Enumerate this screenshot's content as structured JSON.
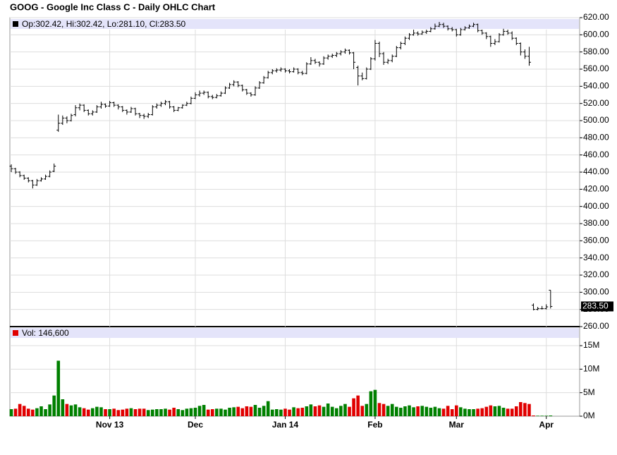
{
  "chart_data": {
    "type": "ohlc",
    "title": "GOOG - Google Inc Class C - Daily OHLC Chart",
    "price_info": "Op:302.42, Hi:302.42, Lo:281.10, Cl:283.50",
    "volume_info": "Vol: 146,600",
    "last_price": {
      "value": 283.5,
      "label": "283.50"
    },
    "grid": true,
    "bar_color": "#000000",
    "up_color": "#008000",
    "down_color": "#e00000",
    "ylim": [
      260,
      620
    ],
    "yticks": [
      {
        "value": 260,
        "label": "260.00"
      },
      {
        "value": 280,
        "label": "280.00"
      },
      {
        "value": 300,
        "label": "300.00"
      },
      {
        "value": 320,
        "label": "320.00"
      },
      {
        "value": 340,
        "label": "340.00"
      },
      {
        "value": 360,
        "label": "360.00"
      },
      {
        "value": 380,
        "label": "380.00"
      },
      {
        "value": 400,
        "label": "400.00"
      },
      {
        "value": 420,
        "label": "420.00"
      },
      {
        "value": 440,
        "label": "440.00"
      },
      {
        "value": 460,
        "label": "460.00"
      },
      {
        "value": 480,
        "label": "480.00"
      },
      {
        "value": 500,
        "label": "500.00"
      },
      {
        "value": 520,
        "label": "520.00"
      },
      {
        "value": 540,
        "label": "540.00"
      },
      {
        "value": 560,
        "label": "560.00"
      },
      {
        "value": 580,
        "label": "580.00"
      },
      {
        "value": 600,
        "label": "600.00"
      },
      {
        "value": 620,
        "label": "620.00"
      }
    ],
    "vlim": [
      0,
      16.8
    ],
    "vticks": [
      {
        "value": 0,
        "label": "0M"
      },
      {
        "value": 5,
        "label": "5M"
      },
      {
        "value": 10,
        "label": "10M"
      },
      {
        "value": 15,
        "label": "15M"
      }
    ],
    "xticks": [
      {
        "value": 23,
        "label": "Nov 13"
      },
      {
        "value": 43,
        "label": "Dec"
      },
      {
        "value": 64,
        "label": "Jan 14"
      },
      {
        "value": 85,
        "label": "Feb"
      },
      {
        "value": 104,
        "label": "Mar"
      },
      {
        "value": 125,
        "label": "Apr"
      }
    ],
    "ohlc": [
      [
        447,
        449,
        440,
        444
      ],
      [
        444,
        445,
        438,
        440
      ],
      [
        440,
        441,
        434,
        436
      ],
      [
        436,
        437,
        431,
        433
      ],
      [
        433,
        434,
        428,
        430
      ],
      [
        430,
        431,
        421,
        425
      ],
      [
        425,
        432,
        424,
        430
      ],
      [
        430,
        434,
        429,
        432
      ],
      [
        432,
        437,
        431,
        435
      ],
      [
        435,
        442,
        434,
        440
      ],
      [
        441,
        450,
        440,
        447
      ],
      [
        489,
        507,
        487,
        497
      ],
      [
        497,
        506,
        495,
        503
      ],
      [
        503,
        505,
        497,
        500
      ],
      [
        500,
        508,
        499,
        506
      ],
      [
        507,
        518,
        505,
        515
      ],
      [
        515,
        520,
        512,
        518
      ],
      [
        518,
        519,
        510,
        512
      ],
      [
        512,
        513,
        506,
        508
      ],
      [
        508,
        512,
        506,
        510
      ],
      [
        510,
        518,
        509,
        516
      ],
      [
        516,
        522,
        514,
        519
      ],
      [
        519,
        520,
        515,
        517
      ],
      [
        517,
        523,
        516,
        521
      ],
      [
        521,
        522,
        516,
        518
      ],
      [
        518,
        519,
        513,
        516
      ],
      [
        516,
        517,
        510,
        512
      ],
      [
        512,
        513,
        507,
        510
      ],
      [
        510,
        516,
        509,
        514
      ],
      [
        514,
        515,
        506,
        508
      ],
      [
        508,
        509,
        503,
        506
      ],
      [
        506,
        508,
        502,
        505
      ],
      [
        505,
        509,
        503,
        507
      ],
      [
        507,
        518,
        506,
        516
      ],
      [
        516,
        520,
        514,
        518
      ],
      [
        518,
        522,
        516,
        520
      ],
      [
        520,
        524,
        518,
        522
      ],
      [
        522,
        523,
        514,
        516
      ],
      [
        516,
        517,
        510,
        512
      ],
      [
        512,
        516,
        511,
        515
      ],
      [
        515,
        519,
        514,
        518
      ],
      [
        518,
        522,
        517,
        520
      ],
      [
        520,
        528,
        519,
        526
      ],
      [
        526,
        533,
        525,
        530
      ],
      [
        530,
        535,
        528,
        532
      ],
      [
        532,
        535,
        530,
        533
      ],
      [
        533,
        534,
        526,
        528
      ],
      [
        528,
        530,
        525,
        527
      ],
      [
        527,
        531,
        526,
        529
      ],
      [
        529,
        534,
        528,
        532
      ],
      [
        532,
        540,
        531,
        538
      ],
      [
        538,
        544,
        537,
        542
      ],
      [
        542,
        547,
        540,
        545
      ],
      [
        545,
        546,
        539,
        541
      ],
      [
        541,
        542,
        534,
        536
      ],
      [
        536,
        537,
        530,
        532
      ],
      [
        532,
        533,
        528,
        530
      ],
      [
        530,
        540,
        529,
        538
      ],
      [
        538,
        546,
        537,
        544
      ],
      [
        544,
        552,
        543,
        550
      ],
      [
        550,
        558,
        549,
        556
      ],
      [
        556,
        560,
        554,
        558
      ],
      [
        558,
        561,
        556,
        559
      ],
      [
        559,
        562,
        557,
        560
      ],
      [
        560,
        561,
        556,
        558
      ],
      [
        558,
        560,
        555,
        557
      ],
      [
        557,
        562,
        556,
        560
      ],
      [
        560,
        561,
        554,
        556
      ],
      [
        556,
        558,
        553,
        555
      ],
      [
        555,
        568,
        554,
        566
      ],
      [
        566,
        574,
        565,
        570
      ],
      [
        570,
        572,
        566,
        568
      ],
      [
        568,
        569,
        563,
        566
      ],
      [
        566,
        575,
        565,
        573
      ],
      [
        573,
        577,
        571,
        575
      ],
      [
        575,
        578,
        573,
        576
      ],
      [
        576,
        580,
        574,
        578
      ],
      [
        578,
        582,
        576,
        580
      ],
      [
        580,
        584,
        578,
        582
      ],
      [
        582,
        583,
        577,
        579
      ],
      [
        579,
        580,
        560,
        568
      ],
      [
        562,
        564,
        541,
        552
      ],
      [
        552,
        556,
        547,
        549
      ],
      [
        549,
        562,
        548,
        560
      ],
      [
        560,
        574,
        559,
        572
      ],
      [
        572,
        594,
        570,
        590
      ],
      [
        590,
        592,
        574,
        578
      ],
      [
        578,
        580,
        565,
        568
      ],
      [
        568,
        572,
        566,
        570
      ],
      [
        570,
        577,
        568,
        575
      ],
      [
        575,
        587,
        574,
        585
      ],
      [
        585,
        592,
        583,
        590
      ],
      [
        590,
        598,
        588,
        596
      ],
      [
        596,
        602,
        594,
        600
      ],
      [
        600,
        606,
        599,
        602
      ],
      [
        602,
        604,
        599,
        601
      ],
      [
        601,
        605,
        600,
        603
      ],
      [
        603,
        606,
        601,
        604
      ],
      [
        604,
        609,
        603,
        607
      ],
      [
        607,
        613,
        606,
        610
      ],
      [
        610,
        615,
        609,
        612
      ],
      [
        612,
        614,
        608,
        610
      ],
      [
        610,
        611,
        605,
        607
      ],
      [
        607,
        609,
        604,
        606
      ],
      [
        606,
        607,
        598,
        600
      ],
      [
        600,
        608,
        599,
        606
      ],
      [
        606,
        610,
        605,
        608
      ],
      [
        608,
        612,
        607,
        610
      ],
      [
        610,
        614,
        609,
        612
      ],
      [
        612,
        613,
        603,
        605
      ],
      [
        605,
        606,
        600,
        602
      ],
      [
        602,
        603,
        595,
        598
      ],
      [
        598,
        599,
        586,
        590
      ],
      [
        590,
        595,
        588,
        592
      ],
      [
        592,
        602,
        591,
        600
      ],
      [
        600,
        607,
        599,
        604
      ],
      [
        604,
        606,
        600,
        602
      ],
      [
        602,
        604,
        594,
        596
      ],
      [
        596,
        597,
        588,
        590
      ],
      [
        590,
        591,
        576,
        580
      ],
      [
        580,
        583,
        572,
        575
      ],
      [
        575,
        586,
        564,
        568
      ],
      [
        285,
        287,
        279,
        280
      ],
      [
        280,
        283,
        279,
        281
      ],
      [
        281,
        284,
        280,
        281
      ],
      [
        281,
        286,
        280,
        283
      ],
      [
        302.42,
        302.42,
        281.1,
        283.5
      ]
    ],
    "volume": [
      1.5,
      1.6,
      2.6,
      2.2,
      1.6,
      1.4,
      1.7,
      2.1,
      1.5,
      2.5,
      4.4,
      11.8,
      3.6,
      2.6,
      2.3,
      2.5,
      1.9,
      1.7,
      1.4,
      1.7,
      2.0,
      1.9,
      1.5,
      1.5,
      1.6,
      1.3,
      1.4,
      1.6,
      1.7,
      1.5,
      1.6,
      1.6,
      1.3,
      1.4,
      1.5,
      1.5,
      1.6,
      1.4,
      1.8,
      1.5,
      1.3,
      1.6,
      1.7,
      1.8,
      2.2,
      2.4,
      1.4,
      1.5,
      1.6,
      1.6,
      1.4,
      1.8,
      1.9,
      2.0,
      1.7,
      2.1,
      2.0,
      2.4,
      1.8,
      2.2,
      3.2,
      1.4,
      1.5,
      1.4,
      1.6,
      1.4,
      1.9,
      1.7,
      1.8,
      2.1,
      2.5,
      2.1,
      2.3,
      2.0,
      2.7,
      2.0,
      1.7,
      2.2,
      2.6,
      2.0,
      3.8,
      4.4,
      2.2,
      2.6,
      5.3,
      5.6,
      2.8,
      2.6,
      2.2,
      2.6,
      2.0,
      1.8,
      2.1,
      2.3,
      1.9,
      2.1,
      2.2,
      2.0,
      1.8,
      2.0,
      1.7,
      1.6,
      2.2,
      1.5,
      2.3,
      1.9,
      1.6,
      1.5,
      1.5,
      1.6,
      1.7,
      2.0,
      2.3,
      2.1,
      2.2,
      1.8,
      1.6,
      1.6,
      2.1,
      3.0,
      2.8,
      2.6,
      0.15,
      0.1,
      0.1,
      0.1,
      0.1466
    ]
  }
}
